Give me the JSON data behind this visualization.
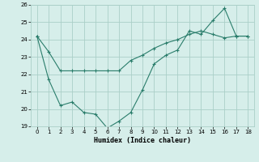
{
  "line1_x": [
    0,
    1,
    2,
    3,
    4,
    5,
    6,
    7,
    8,
    9,
    10,
    11,
    12,
    13,
    14,
    15,
    16,
    17,
    18
  ],
  "line1_y": [
    24.2,
    23.3,
    22.2,
    22.2,
    22.2,
    22.2,
    22.2,
    22.2,
    22.8,
    23.1,
    23.5,
    23.8,
    24.0,
    24.3,
    24.5,
    24.3,
    24.1,
    24.2,
    24.2
  ],
  "line2_x": [
    0,
    1,
    2,
    3,
    4,
    5,
    6,
    7,
    8,
    9,
    10,
    11,
    12,
    13,
    14,
    15,
    16,
    17,
    18
  ],
  "line2_y": [
    24.2,
    21.7,
    20.2,
    20.4,
    19.8,
    19.7,
    18.9,
    19.3,
    19.8,
    21.1,
    22.6,
    23.1,
    23.4,
    24.5,
    24.3,
    25.1,
    25.8,
    24.2,
    24.2
  ],
  "line_color": "#2a7d6b",
  "bg_color": "#d6eeea",
  "grid_color": "#aacfc8",
  "xlabel": "Humidex (Indice chaleur)",
  "ylim": [
    19,
    26
  ],
  "xlim": [
    -0.5,
    18.5
  ],
  "yticks": [
    19,
    20,
    21,
    22,
    23,
    24,
    25,
    26
  ],
  "xticks": [
    0,
    1,
    2,
    3,
    4,
    5,
    6,
    7,
    8,
    9,
    10,
    11,
    12,
    13,
    14,
    15,
    16,
    17,
    18
  ]
}
